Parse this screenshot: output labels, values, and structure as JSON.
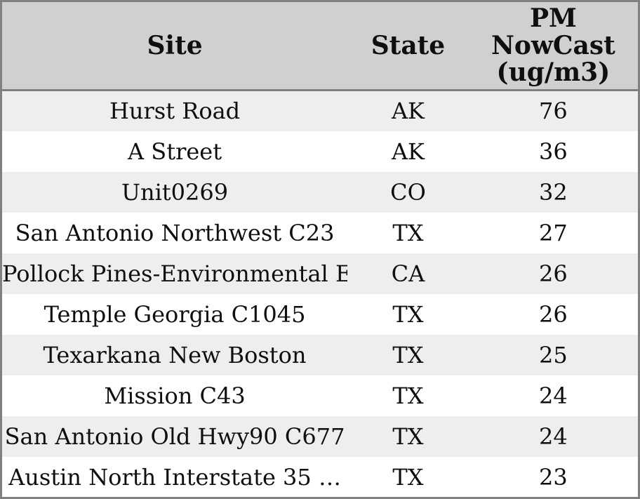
{
  "chart_data": {
    "type": "table",
    "columns": [
      "Site",
      "State",
      "PM NowCast (ug/m3)"
    ],
    "column_display_labels": [
      "Site",
      "State",
      "PM\nNowCast\n(ug/m3)"
    ],
    "rows": [
      [
        "Hurst Road",
        "AK",
        76
      ],
      [
        "A Street",
        "AK",
        36
      ],
      [
        "Unit0269",
        "CO",
        32
      ],
      [
        "San Antonio Northwest C23",
        "TX",
        27
      ],
      [
        "Pollock Pines-Environmental Ed",
        "CA",
        26
      ],
      [
        "Temple Georgia C1045",
        "TX",
        26
      ],
      [
        "Texarkana New Boston",
        "TX",
        25
      ],
      [
        "Mission C43",
        "TX",
        24
      ],
      [
        "San Antonio Old Hwy90 C677",
        "TX",
        24
      ],
      [
        "Austin North Interstate 35 …",
        "TX",
        23
      ]
    ],
    "layout": {
      "striped": true,
      "header_position": "top",
      "text_align": "center"
    }
  },
  "colors": {
    "header_bg": "#d0d0d0",
    "row_alt_bg": "#eeeeee",
    "row_bg": "#ffffff",
    "border": "#808080",
    "text": "#0f0f0f"
  }
}
